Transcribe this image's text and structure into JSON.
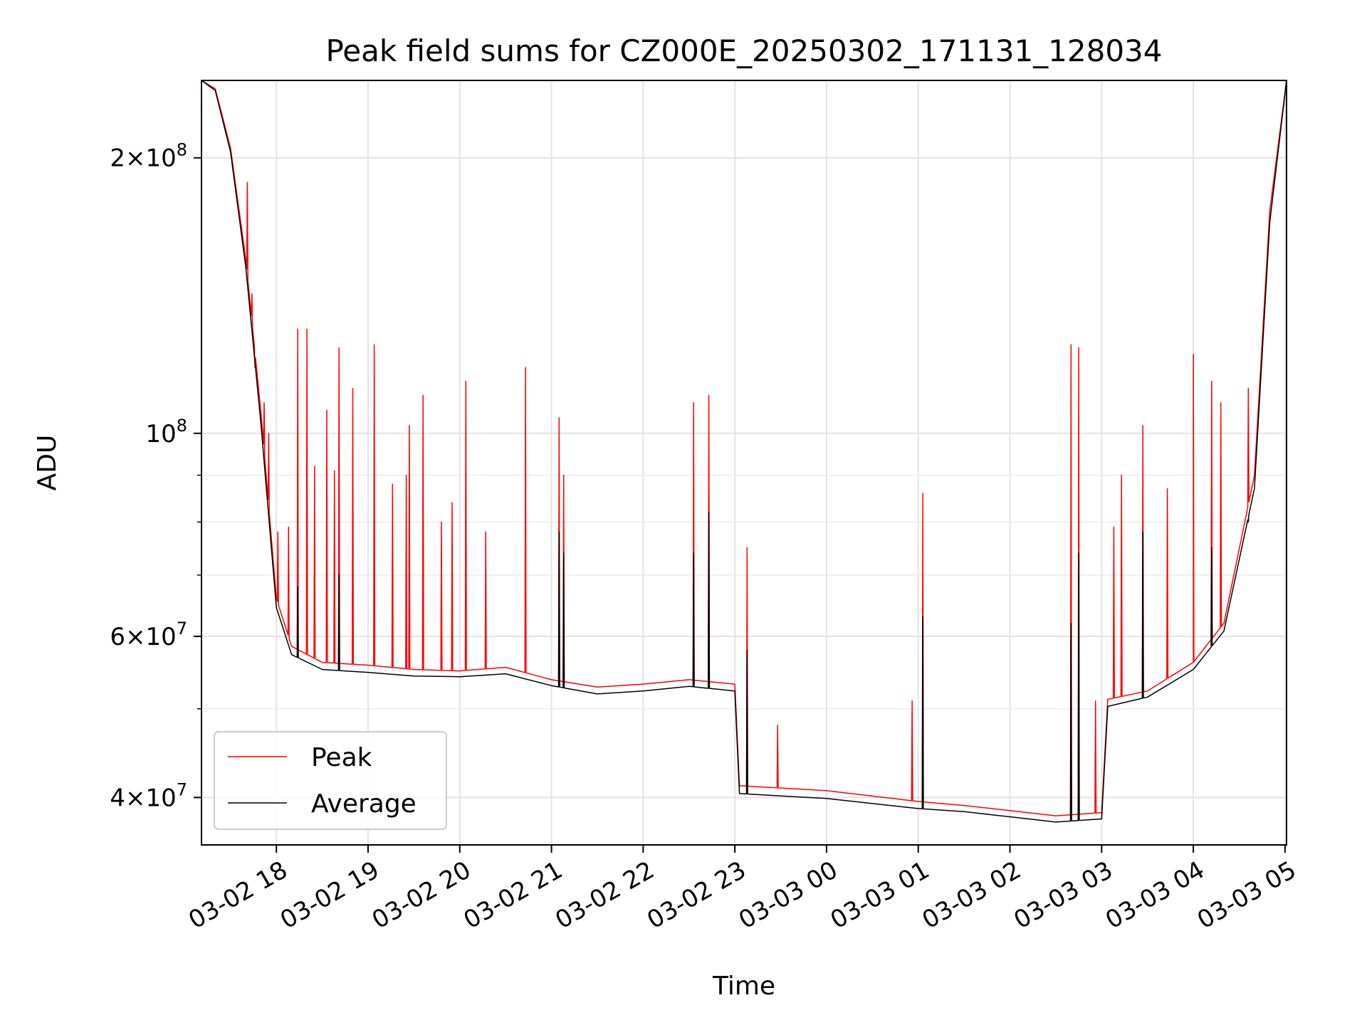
{
  "chart_data": {
    "type": "line",
    "title": "Peak field sums for CZ000E_20250302_171131_128034",
    "xlabel": "Time",
    "ylabel": "ADU",
    "y_scale": "log",
    "ylim": [
      35500000,
      243000000
    ],
    "xlim": [
      "2025-03-02 17:11",
      "2025-03-03 05:01"
    ],
    "grid": true,
    "legend_position": "lower-left",
    "x_ticks": [
      {
        "value": "2025-03-02 18:00",
        "label": "03-02 18"
      },
      {
        "value": "2025-03-02 19:00",
        "label": "03-02 19"
      },
      {
        "value": "2025-03-02 20:00",
        "label": "03-02 20"
      },
      {
        "value": "2025-03-02 21:00",
        "label": "03-02 21"
      },
      {
        "value": "2025-03-02 22:00",
        "label": "03-02 22"
      },
      {
        "value": "2025-03-02 23:00",
        "label": "03-02 23"
      },
      {
        "value": "2025-03-03 00:00",
        "label": "03-03 00"
      },
      {
        "value": "2025-03-03 01:00",
        "label": "03-03 01"
      },
      {
        "value": "2025-03-03 02:00",
        "label": "03-03 02"
      },
      {
        "value": "2025-03-03 03:00",
        "label": "03-03 03"
      },
      {
        "value": "2025-03-03 04:00",
        "label": "03-03 04"
      },
      {
        "value": "2025-03-03 05:00",
        "label": "03-03 05"
      }
    ],
    "y_major_ticks": [
      {
        "value": 40000000,
        "mant": "4",
        "exp": "7"
      },
      {
        "value": 60000000,
        "mant": "6",
        "exp": "7"
      },
      {
        "value": 100000000,
        "mant": "",
        "exp": "8"
      },
      {
        "value": 200000000,
        "mant": "2",
        "exp": "8"
      }
    ],
    "y_minor_ticks": [
      50000000,
      70000000,
      80000000,
      90000000
    ],
    "series": [
      {
        "name": "Peak",
        "color": "#ff0000",
        "baseline": [
          [
            "2025-03-02 17:11",
            243000000
          ],
          [
            "2025-03-02 17:20",
            238000000
          ],
          [
            "2025-03-02 17:30",
            205000000
          ],
          [
            "2025-03-02 17:40",
            155000000
          ],
          [
            "2025-03-02 17:50",
            105000000
          ],
          [
            "2025-03-02 18:00",
            66000000
          ],
          [
            "2025-03-02 18:10",
            58500000
          ],
          [
            "2025-03-02 18:30",
            56200000
          ],
          [
            "2025-03-02 19:00",
            55800000
          ],
          [
            "2025-03-02 19:30",
            55200000
          ],
          [
            "2025-03-02 20:00",
            55000000
          ],
          [
            "2025-03-02 20:30",
            55500000
          ],
          [
            "2025-03-02 21:00",
            53800000
          ],
          [
            "2025-03-02 21:30",
            52800000
          ],
          [
            "2025-03-02 22:00",
            53200000
          ],
          [
            "2025-03-02 22:30",
            53800000
          ],
          [
            "2025-03-02 23:00",
            53200000
          ],
          [
            "2025-03-02 23:03",
            41200000
          ],
          [
            "2025-03-03 00:00",
            40700000
          ],
          [
            "2025-03-03 01:00",
            39600000
          ],
          [
            "2025-03-03 01:30",
            39200000
          ],
          [
            "2025-03-03 02:00",
            38700000
          ],
          [
            "2025-03-03 02:30",
            38200000
          ],
          [
            "2025-03-03 03:00",
            38500000
          ],
          [
            "2025-03-03 03:04",
            51200000
          ],
          [
            "2025-03-03 03:30",
            52300000
          ],
          [
            "2025-03-03 04:00",
            56200000
          ],
          [
            "2025-03-03 04:20",
            62000000
          ],
          [
            "2025-03-03 04:40",
            90000000
          ],
          [
            "2025-03-03 04:50",
            175000000
          ],
          [
            "2025-03-03 05:01",
            243000000
          ]
        ],
        "spikes": [
          [
            "2025-03-02 17:41",
            188000000
          ],
          [
            "2025-03-02 17:44",
            142000000
          ],
          [
            "2025-03-02 17:46",
            118000000
          ],
          [
            "2025-03-02 17:52",
            108000000
          ],
          [
            "2025-03-02 17:55",
            100000000
          ],
          [
            "2025-03-02 18:01",
            78000000
          ],
          [
            "2025-03-02 18:08",
            79000000
          ],
          [
            "2025-03-02 18:14",
            130000000
          ],
          [
            "2025-03-02 18:20",
            130000000
          ],
          [
            "2025-03-02 18:25",
            92000000
          ],
          [
            "2025-03-02 18:33",
            106000000
          ],
          [
            "2025-03-02 18:38",
            91000000
          ],
          [
            "2025-03-02 18:41",
            124000000
          ],
          [
            "2025-03-02 18:50",
            112000000
          ],
          [
            "2025-03-02 19:04",
            125000000
          ],
          [
            "2025-03-02 19:16",
            88000000
          ],
          [
            "2025-03-02 19:25",
            90000000
          ],
          [
            "2025-03-02 19:27",
            102000000
          ],
          [
            "2025-03-02 19:36",
            110000000
          ],
          [
            "2025-03-02 19:48",
            80000000
          ],
          [
            "2025-03-02 19:55",
            84000000
          ],
          [
            "2025-03-02 20:04",
            114000000
          ],
          [
            "2025-03-02 20:17",
            78000000
          ],
          [
            "2025-03-02 20:43",
            118000000
          ],
          [
            "2025-03-02 21:05",
            104000000
          ],
          [
            "2025-03-02 21:08",
            90000000
          ],
          [
            "2025-03-02 22:33",
            108000000
          ],
          [
            "2025-03-02 22:43",
            110000000
          ],
          [
            "2025-03-02 23:08",
            75000000
          ],
          [
            "2025-03-02 23:28",
            48000000
          ],
          [
            "2025-03-03 00:56",
            51000000
          ],
          [
            "2025-03-03 01:03",
            86000000
          ],
          [
            "2025-03-03 02:40",
            125000000
          ],
          [
            "2025-03-03 02:45",
            124000000
          ],
          [
            "2025-03-03 02:56",
            51000000
          ],
          [
            "2025-03-03 03:08",
            79000000
          ],
          [
            "2025-03-03 03:13",
            90000000
          ],
          [
            "2025-03-03 03:27",
            102000000
          ],
          [
            "2025-03-03 03:43",
            87000000
          ],
          [
            "2025-03-03 04:00",
            122000000
          ],
          [
            "2025-03-03 04:12",
            114000000
          ],
          [
            "2025-03-03 04:18",
            108000000
          ],
          [
            "2025-03-03 04:36",
            112000000
          ]
        ]
      },
      {
        "name": "Average",
        "color": "#000000",
        "baseline": [
          [
            "2025-03-02 17:11",
            243000000
          ],
          [
            "2025-03-02 17:20",
            237000000
          ],
          [
            "2025-03-02 17:30",
            203000000
          ],
          [
            "2025-03-02 17:40",
            152000000
          ],
          [
            "2025-03-02 17:50",
            102000000
          ],
          [
            "2025-03-02 18:00",
            64500000
          ],
          [
            "2025-03-02 18:10",
            57300000
          ],
          [
            "2025-03-02 18:30",
            55200000
          ],
          [
            "2025-03-02 19:00",
            54800000
          ],
          [
            "2025-03-02 19:30",
            54300000
          ],
          [
            "2025-03-02 20:00",
            54200000
          ],
          [
            "2025-03-02 20:30",
            54600000
          ],
          [
            "2025-03-02 21:00",
            53000000
          ],
          [
            "2025-03-02 21:30",
            51900000
          ],
          [
            "2025-03-02 22:00",
            52300000
          ],
          [
            "2025-03-02 22:30",
            52900000
          ],
          [
            "2025-03-02 23:00",
            52300000
          ],
          [
            "2025-03-02 23:03",
            40400000
          ],
          [
            "2025-03-03 00:00",
            39900000
          ],
          [
            "2025-03-03 01:00",
            38900000
          ],
          [
            "2025-03-03 01:30",
            38600000
          ],
          [
            "2025-03-03 02:00",
            38100000
          ],
          [
            "2025-03-03 02:30",
            37600000
          ],
          [
            "2025-03-03 03:00",
            37900000
          ],
          [
            "2025-03-03 03:04",
            50300000
          ],
          [
            "2025-03-03 03:30",
            51500000
          ],
          [
            "2025-03-03 04:00",
            55200000
          ],
          [
            "2025-03-03 04:20",
            60800000
          ],
          [
            "2025-03-03 04:40",
            87000000
          ],
          [
            "2025-03-03 04:50",
            170000000
          ],
          [
            "2025-03-03 05:01",
            243000000
          ]
        ],
        "spikes": [
          [
            "2025-03-02 18:14",
            68000000
          ],
          [
            "2025-03-02 18:41",
            70000000
          ],
          [
            "2025-03-02 21:05",
            78000000
          ],
          [
            "2025-03-02 21:08",
            74000000
          ],
          [
            "2025-03-02 22:33",
            74000000
          ],
          [
            "2025-03-02 22:43",
            82000000
          ],
          [
            "2025-03-02 23:08",
            58000000
          ],
          [
            "2025-03-03 01:03",
            63000000
          ],
          [
            "2025-03-03 02:40",
            62000000
          ],
          [
            "2025-03-03 02:45",
            74000000
          ],
          [
            "2025-03-03 03:27",
            78000000
          ],
          [
            "2025-03-03 04:12",
            75000000
          ],
          [
            "2025-03-03 04:36",
            80000000
          ]
        ]
      }
    ]
  }
}
